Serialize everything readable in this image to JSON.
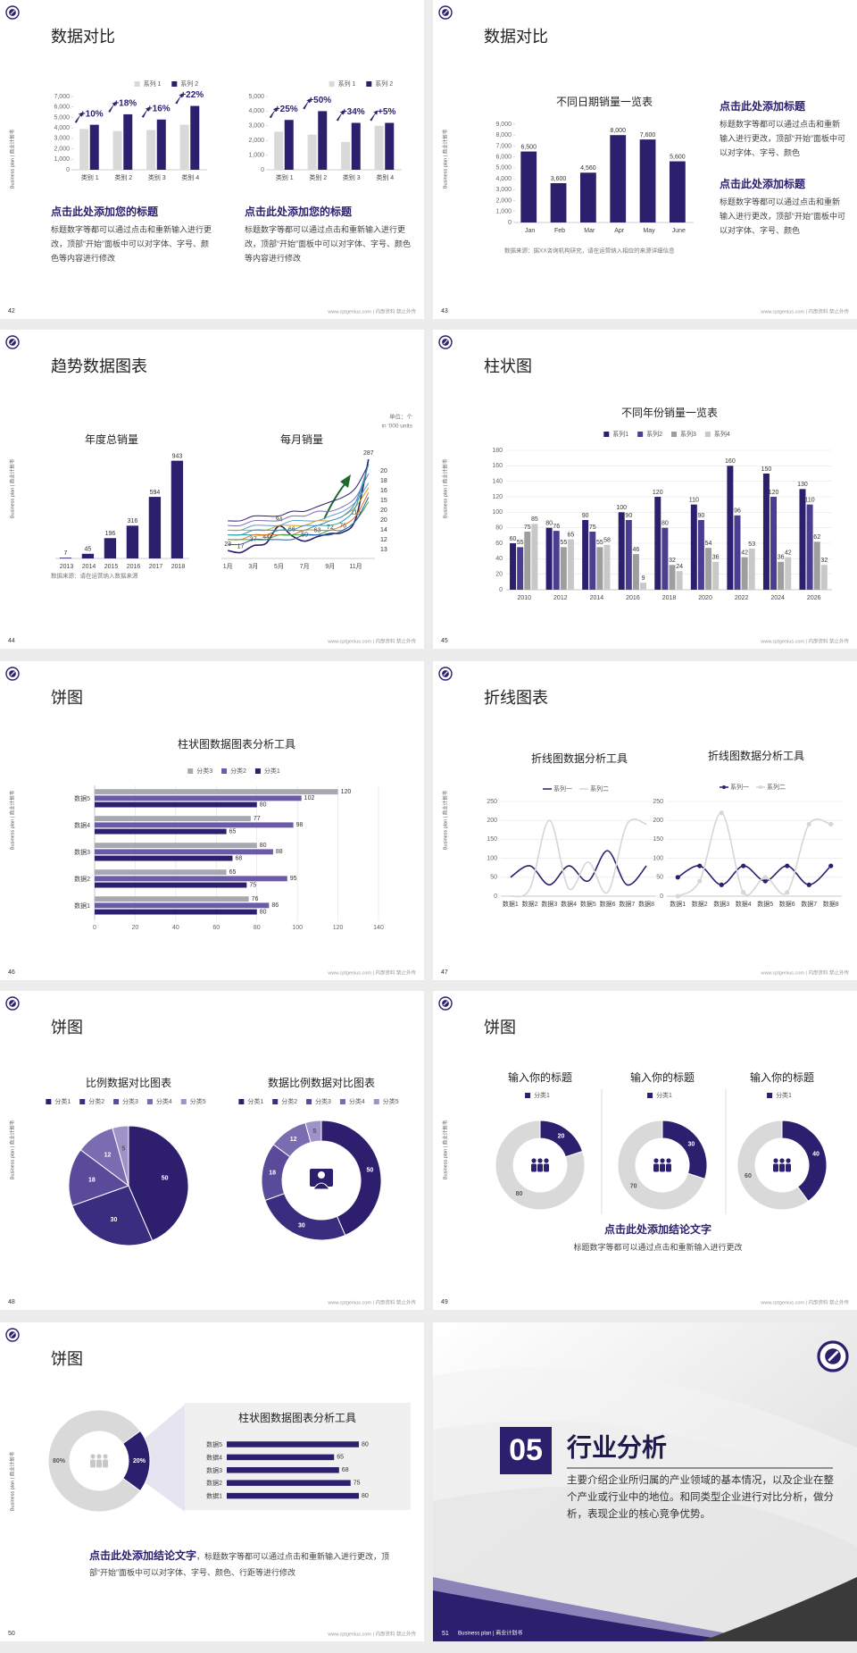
{
  "footer": "www.cptgenius.com | 内部资料 禁止外传",
  "side_label": "Business plan | 商业计划书",
  "slides": [
    {
      "page": "42",
      "title": "数据对比",
      "chart_data": [
        {
          "type": "bar",
          "categories": [
            "类别 1",
            "类别 2",
            "类别 3",
            "类别 4"
          ],
          "series": [
            {
              "name": "系列 1",
              "color": "#d9d9d9",
              "values": [
                3900,
                3700,
                3800,
                4300
              ]
            },
            {
              "name": "系列 2",
              "color": "#2b1f6e",
              "values": [
                4300,
                5300,
                4800,
                6100
              ]
            }
          ],
          "ylim": [
            0,
            7000
          ],
          "yticks": [
            0,
            {
              "value": 1000,
              "label": "1,000"
            },
            {
              "value": 2000,
              "label": "2,000"
            },
            {
              "value": 3000,
              "label": "3,000"
            },
            {
              "value": 4000,
              "label": "4,000"
            },
            {
              "value": 5000,
              "label": "5,000"
            },
            {
              "value": 6000,
              "label": "6,000"
            },
            {
              "value": 7000,
              "label": "7,000"
            }
          ],
          "annotations": [
            "+10%",
            "+18%",
            "+16%",
            "+22%"
          ],
          "legend": "top-right"
        },
        {
          "type": "bar",
          "categories": [
            "类别 1",
            "类别 2",
            "类别 3",
            "类别 4"
          ],
          "series": [
            {
              "name": "系列 1",
              "color": "#d9d9d9",
              "values": [
                2600,
                2400,
                1900,
                3000
              ]
            },
            {
              "name": "系列 2",
              "color": "#2b1f6e",
              "values": [
                3400,
                4000,
                3200,
                3200
              ]
            }
          ],
          "ylim": [
            0,
            5000
          ],
          "yticks": [
            0,
            {
              "value": 1000,
              "label": "1,000"
            },
            {
              "value": 2000,
              "label": "2,000"
            },
            {
              "value": 3000,
              "label": "3,000"
            },
            {
              "value": 4000,
              "label": "4,000"
            },
            {
              "value": 5000,
              "label": "5,000"
            }
          ],
          "annotations": [
            "+25%",
            "+50%",
            "+34%",
            "+5%"
          ],
          "legend": "top-right"
        }
      ],
      "blocks": [
        {
          "heading": "点击此处添加您的标题",
          "body": "标题数字等都可以通过点击和重新输入进行更改，顶部“开始”面板中可以对字体、字号、颜色等内容进行修改"
        },
        {
          "heading": "点击此处添加您的标题",
          "body": "标题数字等都可以通过点击和重新输入进行更改，顶部“开始”面板中可以对字体、字号、颜色等内容进行修改"
        }
      ]
    },
    {
      "page": "43",
      "title": "数据对比",
      "chart_data": [
        {
          "type": "bar",
          "title": "不同日期销量一览表",
          "categories": [
            "Jan",
            "Feb",
            "Mar",
            "Apr",
            "May",
            "June"
          ],
          "values": [
            6500,
            3600,
            4560,
            8000,
            7600,
            5600
          ],
          "value_labels": [
            "6,500",
            "3,600",
            "4,560",
            "8,000",
            "7,600",
            "5,600"
          ],
          "color": "#2b1f6e",
          "ylim": [
            0,
            9000
          ],
          "yticks": [
            0,
            {
              "value": 1000,
              "label": "1,000"
            },
            {
              "value": 2000,
              "label": "2,000"
            },
            {
              "value": 3000,
              "label": "3,000"
            },
            {
              "value": 4000,
              "label": "4,000"
            },
            {
              "value": 5000,
              "label": "5,000"
            },
            {
              "value": 6000,
              "label": "6,000"
            },
            {
              "value": 7000,
              "label": "7,000"
            },
            {
              "value": 8000,
              "label": "8,000"
            },
            {
              "value": 9000,
              "label": "9,000"
            }
          ]
        }
      ],
      "blocks": [
        {
          "heading": "点击此处添加标题",
          "body": "标题数字等都可以通过点击和重新输入进行更改，顶部“开始”面板中可以对字体、字号、颜色"
        },
        {
          "heading": "点击此处添加标题",
          "body": "标题数字等都可以通过点击和重新输入进行更改，顶部“开始”面板中可以对字体、字号、颜色"
        }
      ],
      "source": "数据来源：据XX咨询机构研究，请在运营纳入相应的来源详细信息"
    },
    {
      "page": "44",
      "title": "趋势数据图表",
      "chart_data": [
        {
          "type": "bar",
          "title": "年度总销量",
          "categories": [
            "2013",
            "2014",
            "2015",
            "2016",
            "2017",
            "2018"
          ],
          "values": [
            7,
            45,
            196,
            316,
            594,
            943
          ],
          "color": "#2b1f6e",
          "ylim": [
            0,
            1000
          ],
          "data_labels": true
        },
        {
          "type": "line",
          "title": "每月销量",
          "categories": [
            "1月",
            null,
            "3月",
            null,
            "5月",
            null,
            "7月",
            null,
            "9月",
            null,
            "11月",
            null
          ],
          "ylim": [
            0,
            300
          ],
          "y2lim": [
            0,
            22
          ],
          "smooth": true,
          "series": [
            {
              "color": "#2b1f6e",
              "values": [
                23,
                17,
                37,
                44,
                94,
                66,
                50,
                63,
                72,
                76,
                115,
                287
              ],
              "data_labels": true
            },
            {
              "color": "#2b1f6e",
              "axis": "y2",
              "end_label": true,
              "values": [
                8,
                8,
                9,
                9,
                9,
                10,
                10,
                11,
                12,
                13,
                15,
                20
              ]
            },
            {
              "color": "#7a6cb0",
              "axis": "y2",
              "end_label": true,
              "values": [
                7,
                7,
                8,
                8,
                8,
                9,
                9,
                10,
                10,
                11,
                13,
                18
              ]
            },
            {
              "color": "#5aa0c8",
              "axis": "y2",
              "end_label": true,
              "values": [
                6,
                6,
                7,
                7,
                7,
                8,
                8,
                8,
                9,
                10,
                12,
                16
              ]
            },
            {
              "color": "#d4a020",
              "axis": "y2",
              "end_label": true,
              "values": [
                6,
                6,
                6,
                6,
                7,
                7,
                7,
                8,
                8,
                9,
                11,
                15
              ]
            },
            {
              "color": "#3b8ad0",
              "axis": "y2",
              "end_label": true,
              "values": [
                5,
                5,
                6,
                6,
                6,
                6,
                7,
                7,
                8,
                9,
                12,
                20
              ]
            },
            {
              "color": "#2aa0a0",
              "axis": "y2",
              "end_label": true,
              "values": [
                5,
                5,
                5,
                5,
                6,
                6,
                6,
                7,
                7,
                8,
                11,
                20
              ]
            },
            {
              "color": "#e07020",
              "axis": "y2",
              "end_label": true,
              "values": [
                4,
                4,
                5,
                5,
                5,
                5,
                6,
                6,
                6,
                7,
                9,
                14
              ]
            },
            {
              "color": "#4aa050",
              "axis": "y2",
              "end_label": true,
              "values": [
                4,
                4,
                4,
                4,
                5,
                5,
                5,
                5,
                6,
                6,
                8,
                12
              ]
            },
            {
              "color": "#1f5fa0",
              "axis": "y2",
              "end_label": true,
              "values": [
                3,
                3,
                4,
                4,
                4,
                4,
                5,
                5,
                5,
                6,
                8,
                13
              ]
            }
          ]
        }
      ],
      "unit_note": [
        "单位：个",
        "in '000 units"
      ],
      "source": "数据来源：请在运营纳入数据来源"
    },
    {
      "page": "45",
      "title": "柱状图",
      "chart_data": [
        {
          "type": "bar",
          "title": "不同年份销量一览表",
          "categories": [
            "2010",
            "2012",
            "2014",
            "2016",
            "2018",
            "2020",
            "2022",
            "2024",
            "2026"
          ],
          "series": [
            {
              "name": "系列1",
              "color": "#2b1f6e",
              "values": [
                60,
                80,
                90,
                100,
                120,
                110,
                160,
                150,
                130
              ]
            },
            {
              "name": "系列2",
              "color": "#4b3d8f",
              "values": [
                55,
                76,
                75,
                90,
                80,
                90,
                96,
                120,
                110
              ]
            },
            {
              "name": "系列3",
              "color": "#9e9e9e",
              "values": [
                75,
                55,
                55,
                46,
                32,
                54,
                42,
                36,
                62
              ]
            },
            {
              "name": "系列4",
              "color": "#c8c8c8",
              "values": [
                85,
                65,
                58,
                9,
                24,
                36,
                53,
                42,
                32
              ]
            }
          ],
          "ylim": [
            0,
            180
          ],
          "yticks": [
            0,
            20,
            40,
            60,
            80,
            100,
            120,
            140,
            160,
            180
          ],
          "grid": true,
          "legend": "top",
          "data_labels": true
        }
      ]
    },
    {
      "page": "46",
      "title": "饼图",
      "chart_data": [
        {
          "type": "hbar",
          "title": "柱状图数据图表分析工具",
          "categories": [
            "数据1",
            "数据2",
            "数据3",
            "数据4",
            "数据5"
          ],
          "series": [
            {
              "name": "分类3",
              "color": "#a8a8b0",
              "values": [
                76,
                65,
                80,
                77,
                120
              ]
            },
            {
              "name": "分类2",
              "color": "#6a5aa8",
              "values": [
                86,
                95,
                88,
                98,
                102
              ]
            },
            {
              "name": "分类1",
              "color": "#2b1f6e",
              "values": [
                80,
                75,
                68,
                65,
                80
              ]
            }
          ],
          "xlim": [
            0,
            140
          ],
          "xticks": [
            0,
            20,
            40,
            60,
            80,
            100,
            120,
            140
          ],
          "grid": true,
          "legend": "top",
          "data_labels": true
        }
      ]
    },
    {
      "page": "47",
      "title": "折线图表",
      "chart_data": [
        {
          "type": "line",
          "title": "折线图数据分析工具",
          "categories": [
            "数据1",
            "数据2",
            "数据3",
            "数据4",
            "数据5",
            "数据6",
            "数据7",
            "数据8"
          ],
          "series": [
            {
              "name": "系列一",
              "color": "#2b1f6e",
              "values": [
                50,
                80,
                30,
                80,
                40,
                120,
                30,
                80
              ]
            },
            {
              "name": "系列二",
              "color": "#d6d6d6",
              "values": [
                0,
                20,
                200,
                20,
                90,
                10,
                190,
                190
              ]
            }
          ],
          "ylim": [
            0,
            250
          ],
          "yticks": [
            0,
            50,
            100,
            150,
            200,
            250
          ],
          "grid": true,
          "legend": "top",
          "smooth": true
        },
        {
          "type": "line",
          "title": "折线图数据分析工具",
          "categories": [
            "数据1",
            "数据2",
            "数据3",
            "数据4",
            "数据5",
            "数据6",
            "数据7",
            "数据8"
          ],
          "series": [
            {
              "name": "系列一",
              "color": "#2b1f6e",
              "values": [
                50,
                80,
                30,
                80,
                40,
                80,
                30,
                80
              ]
            },
            {
              "name": "系列二",
              "color": "#d6d6d6",
              "values": [
                0,
                40,
                220,
                10,
                50,
                10,
                190,
                190
              ]
            }
          ],
          "ylim": [
            0,
            250
          ],
          "yticks": [
            0,
            50,
            100,
            150,
            200,
            250
          ],
          "grid": true,
          "legend": "top",
          "smooth": true,
          "markers": true
        }
      ]
    },
    {
      "page": "48",
      "title": "饼图",
      "chart_data": [
        {
          "type": "pie",
          "title": "比例数据对比图表",
          "categories": [
            "分类1",
            "分类2",
            "分类3",
            "分类4",
            "分类5"
          ],
          "values": [
            50,
            30,
            18,
            12,
            5
          ],
          "colors": [
            "#2e1f6e",
            "#3a2d80",
            "#5a4a9a",
            "#7a6cb0",
            "#9e92c8"
          ],
          "legend": "top"
        },
        {
          "type": "donut",
          "title": "数据比例数据对比图表",
          "categories": [
            "分类1",
            "分类2",
            "分类3",
            "分类4",
            "分类5"
          ],
          "values": [
            50,
            30,
            18,
            12,
            5
          ],
          "colors": [
            "#2e1f6e",
            "#3a2d80",
            "#5a4a9a",
            "#7a6cb0",
            "#9e92c8"
          ],
          "legend": "top"
        }
      ]
    },
    {
      "page": "49",
      "title": "饼图",
      "chart_data": [
        {
          "type": "donut",
          "title": "输入你的标题",
          "categories": [
            "分类1",
            null
          ],
          "values": [
            20,
            80
          ],
          "colors": [
            "#2b1f6e",
            "#d9d9d9"
          ],
          "legend": "top"
        },
        {
          "type": "donut",
          "title": "输入你的标题",
          "categories": [
            "分类1",
            null
          ],
          "values": [
            30,
            70
          ],
          "colors": [
            "#2b1f6e",
            "#d9d9d9"
          ],
          "legend": "top"
        },
        {
          "type": "donut",
          "title": "输入你的标题",
          "categories": [
            "分类1",
            null
          ],
          "values": [
            40,
            60
          ],
          "colors": [
            "#2b1f6e",
            "#d9d9d9"
          ],
          "legend": "top"
        }
      ],
      "blocks": [
        {
          "heading": "点击此处添加结论文字",
          "body": "标题数字等都可以通过点击和重新输入进行更改"
        }
      ]
    },
    {
      "page": "50",
      "title": "饼图",
      "chart_data": [
        {
          "type": "donut",
          "values": [
            80,
            20
          ],
          "value_labels": [
            "80%",
            "20%"
          ],
          "colors": [
            "#d9d9d9",
            "#2b1f6e"
          ]
        },
        {
          "type": "hbar",
          "title": "柱状图数据图表分析工具",
          "categories": [
            "数据1",
            "数据2",
            "数据3",
            "数据4",
            "数据5"
          ],
          "values": [
            80,
            75,
            68,
            65,
            80
          ],
          "color": "#2b1f6e",
          "xlim": [
            0,
            100
          ],
          "data_labels": true
        }
      ],
      "blocks": [
        {
          "heading": "点击此处添加结论文字",
          "body": "，标题数字等都可以通过点击和重新输入进行更改，顶部“开始”面板中可以对字体、字号、颜色、行距等进行修改"
        }
      ]
    },
    {
      "page": "51",
      "footer": "Business plan | 商业计划书",
      "number": "05",
      "title": "行业分析",
      "body": "主要介绍企业所归属的产业领域的基本情况，以及企业在整个产业或行业中的地位。和同类型企业进行对比分析，做分析，表现企业的核心竞争优势。"
    }
  ]
}
